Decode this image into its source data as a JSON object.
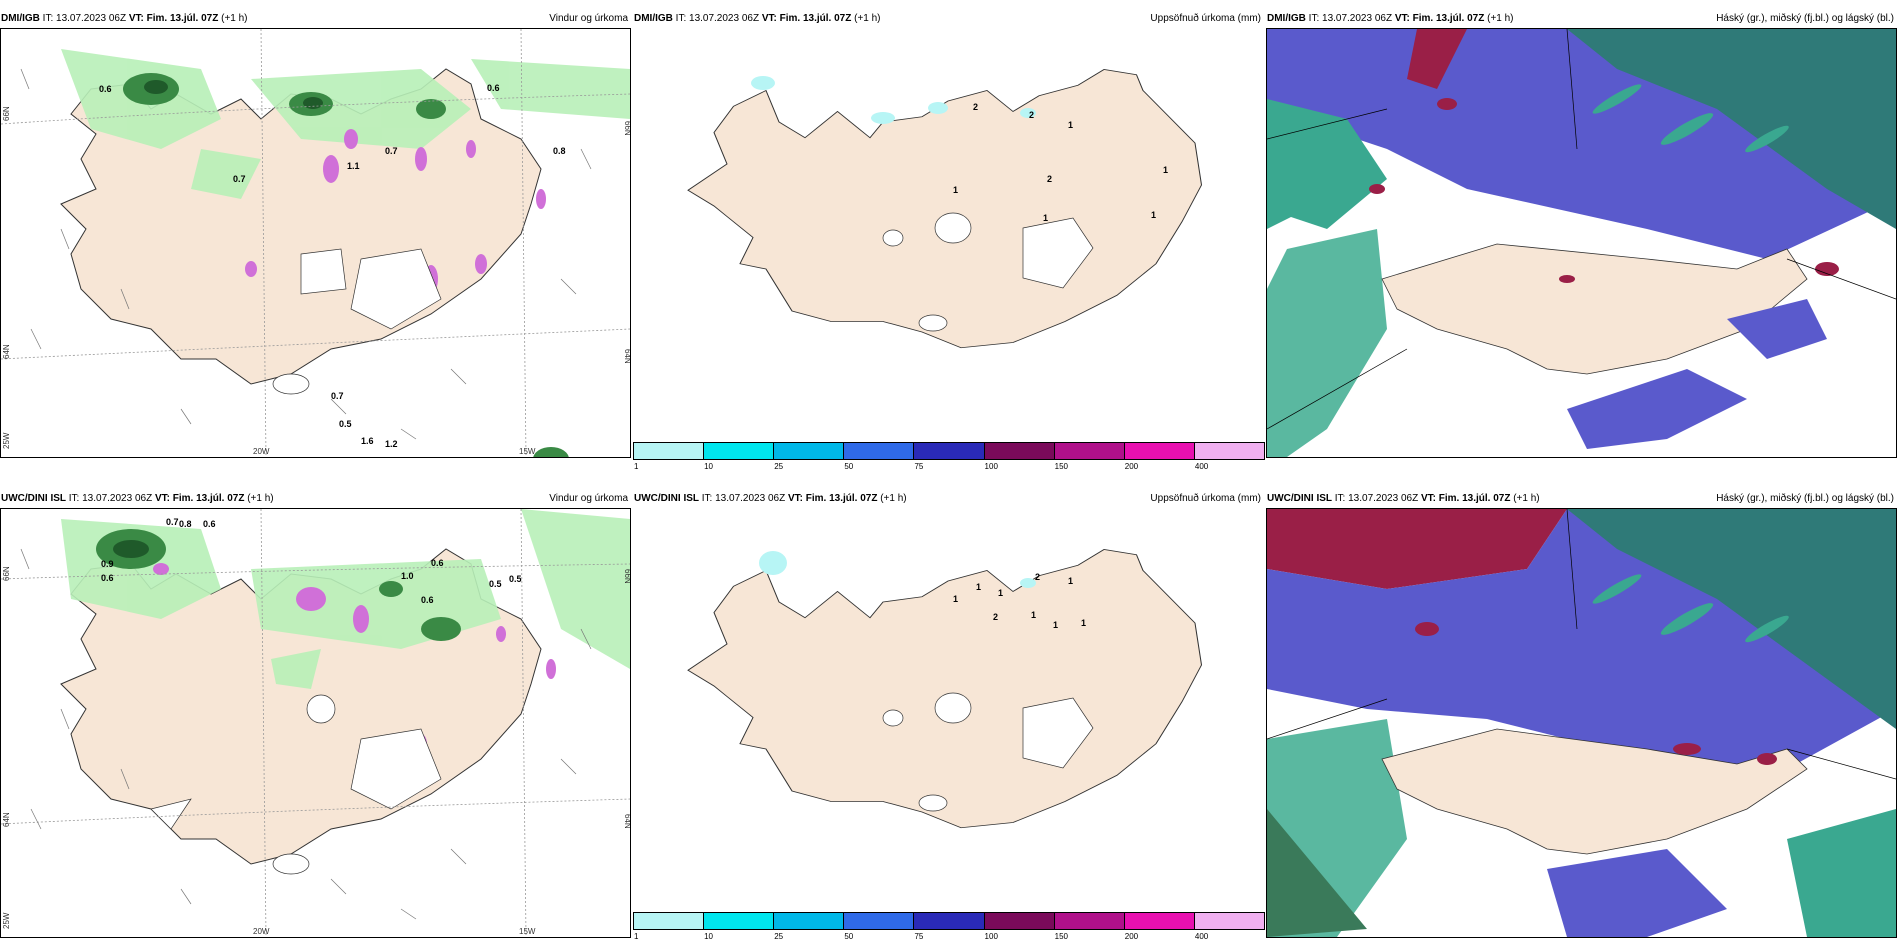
{
  "panels": [
    {
      "model": "DMI/IGB",
      "it": "IT: 13.07.2023 06Z",
      "vt": "VT: Fim. 13.júl. 07Z",
      "lead": "(+1 h)",
      "right": "Vindur og úrkoma"
    },
    {
      "model": "DMI/IGB",
      "it": "IT: 13.07.2023 06Z",
      "vt": "VT: Fim. 13.júl. 07Z",
      "lead": "(+1 h)",
      "right": "Uppsöfnuð úrkoma (mm)"
    },
    {
      "model": "DMI/IGB",
      "it": "IT: 13.07.2023 06Z",
      "vt": "VT: Fim. 13.júl. 07Z",
      "lead": "(+1 h)",
      "right": "Háský (gr.), miðský (fj.bl.) og lágský (bl.)"
    },
    {
      "model": "UWC/DINI ISL",
      "it": "IT: 13.07.2023 06Z",
      "vt": "VT: Fim. 13.júl. 07Z",
      "lead": "(+1 h)",
      "right": "Vindur og úrkoma"
    },
    {
      "model": "UWC/DINI ISL",
      "it": "IT: 13.07.2023 06Z",
      "vt": "VT: Fim. 13.júl. 07Z",
      "lead": "(+1 h)",
      "right": "Uppsöfnuð úrkoma (mm)"
    },
    {
      "model": "UWC/DINI ISL",
      "it": "IT: 13.07.2023 06Z",
      "vt": "VT: Fim. 13.júl. 07Z",
      "lead": "(+1 h)",
      "right": "Háský (gr.), miðský (fj.bl.) og lágský (bl.)"
    }
  ],
  "grid_labels": {
    "lat66": "66N",
    "lat64": "64N",
    "lon25": "25W",
    "lon20": "20W",
    "lon15": "15W"
  },
  "colorbar": {
    "colors": [
      "#b7f5f5",
      "#00e6ee",
      "#00b8e8",
      "#2f6ae8",
      "#2a2ab8",
      "#7a0a5a",
      "#b0108a",
      "#e810b0",
      "#f0b0f0"
    ],
    "ticks": [
      "1",
      "10",
      "25",
      "50",
      "75",
      "100",
      "150",
      "200",
      "400"
    ]
  },
  "colors": {
    "land": "#f7e6d6",
    "precip_light": "#b8f0b8",
    "precip_dark": "#1f5a2a",
    "cloud_high": "#9a1f47",
    "cloud_mid": "#5a5acc",
    "cloud_low": "#3aa890"
  },
  "values": {
    "top_wind": [
      "0.6",
      "0.6",
      "0.7",
      "0.7",
      "0.7",
      "0.8",
      "0.5",
      "1.6",
      "1.2",
      "1.1"
    ],
    "top_accum": [
      "2",
      "2",
      "1",
      "2",
      "1",
      "1",
      "1",
      "1"
    ],
    "bot_wind": [
      "0.7",
      "0.8",
      "0.6",
      "0.9",
      "0.6",
      "1.0",
      "0.6",
      "0.5",
      "0.5",
      "0.6"
    ],
    "bot_accum": [
      "2",
      "1",
      "1",
      "1",
      "1",
      "2",
      "1",
      "1",
      "1"
    ]
  }
}
